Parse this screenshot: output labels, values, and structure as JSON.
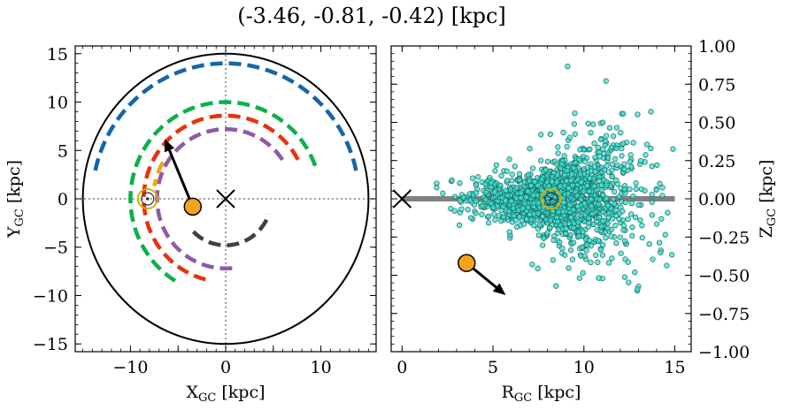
{
  "figure": {
    "title": "(-3.46, -0.81, -0.42) [kpc]"
  },
  "chart_data": [
    {
      "type": "scatter",
      "panel": "left",
      "xlabel_main": "X",
      "xlabel_sub": "GC",
      "xlabel_unit": " [kpc]",
      "ylabel_main": "Y",
      "ylabel_sub": "GC",
      "ylabel_unit": " [kpc]",
      "xlim": [
        -15.8,
        15.8
      ],
      "ylim": [
        -15.8,
        15.8
      ],
      "xticks": [
        -10,
        -5,
        0,
        5,
        10
      ],
      "xticklabels": [
        "−10",
        "",
        "0",
        "",
        "10"
      ],
      "yticks": [
        -15,
        -10,
        -5,
        0,
        5,
        10,
        15
      ],
      "yticklabels": [
        "−15",
        "−10",
        "−5",
        "0",
        "5",
        "10",
        "15"
      ],
      "grid": false,
      "galaxy_boundary_radius": 15,
      "galactic_center": {
        "x": 0,
        "y": 0,
        "marker": "x"
      },
      "sun": {
        "x": -8.2,
        "y": 0,
        "marker": "sun-symbol",
        "color": "#d4b000"
      },
      "object": {
        "x": -3.46,
        "y": -0.81,
        "color": "#f5a31a"
      },
      "velocity_arrow": {
        "from": [
          -3.46,
          -0.81
        ],
        "to": [
          -6.4,
          6.2
        ]
      },
      "spiral_arms": [
        {
          "color": "#1565a8",
          "r": 14.0,
          "theta_deg": [
            12,
            170
          ],
          "style": "dashed"
        },
        {
          "color": "#0db04b",
          "r": 10.0,
          "theta_deg": [
            20,
            238
          ],
          "style": "dashed"
        },
        {
          "color": "#e8320e",
          "r": 8.6,
          "theta_deg": [
            28,
            256
          ],
          "style": "dashed"
        },
        {
          "color": "#8e5aa8",
          "r": 7.2,
          "theta_deg": [
            34,
            278
          ],
          "style": "dashed"
        },
        {
          "color": "#f5a31a",
          "r": 7.6,
          "theta_deg": [
            150,
            170
          ],
          "style": "dashed"
        },
        {
          "color": "#404040",
          "r": 4.8,
          "theta_deg": [
            225,
            342
          ],
          "style": "dashed"
        }
      ],
      "crosshair_lines": {
        "x": 0,
        "y": 0,
        "style": "dotted",
        "color": "#808080"
      }
    },
    {
      "type": "scatter",
      "panel": "right",
      "xlabel_main": "R",
      "xlabel_sub": "GC",
      "xlabel_unit": " [kpc]",
      "ylabel_main": "Z",
      "ylabel_sub": "GC",
      "ylabel_unit": " [kpc]",
      "xlim": [
        -0.6,
        15.9
      ],
      "ylim": [
        -1.0,
        1.0
      ],
      "xticks": [
        0,
        5,
        10,
        15
      ],
      "xticklabels": [
        "0",
        "5",
        "10",
        "15"
      ],
      "yticks": [
        -1.0,
        -0.75,
        -0.5,
        -0.25,
        0.0,
        0.25,
        0.5,
        0.75,
        1.0
      ],
      "yticklabels": [
        "−1.00",
        "−0.75",
        "−0.50",
        "−0.25",
        "0.00",
        "0.25",
        "0.50",
        "0.75",
        "1.00"
      ],
      "y_axis_side": "right",
      "grid": false,
      "disk_plane": {
        "z": 0,
        "r_range": [
          0,
          15
        ],
        "color": "#808080"
      },
      "galactic_center": {
        "r": 0,
        "z": 0,
        "marker": "x"
      },
      "sun": {
        "r": 8.2,
        "z": 0,
        "marker": "sun-symbol",
        "color": "#d4b000"
      },
      "object": {
        "r": 3.55,
        "z": -0.42,
        "color": "#f5a31a"
      },
      "velocity_arrow": {
        "from": [
          3.55,
          -0.42
        ],
        "to": [
          5.7,
          -0.63
        ]
      },
      "star_cloud": {
        "color": "#40e0d0",
        "edge_color": "#1a6b64",
        "count_estimate": 1500,
        "r_center": 8.5,
        "r_spread": 2.2,
        "z_spread": 0.12,
        "r_range": [
          1.5,
          15.3
        ]
      }
    }
  ]
}
